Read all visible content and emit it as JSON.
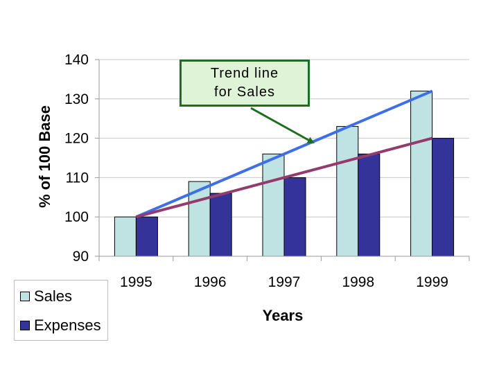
{
  "chart_data": {
    "type": "bar",
    "categories": [
      "1995",
      "1996",
      "1997",
      "1998",
      "1999"
    ],
    "series": [
      {
        "name": "Sales",
        "values": [
          100,
          109,
          116,
          123,
          132
        ],
        "color": "#bfe3e3"
      },
      {
        "name": "Expenses",
        "values": [
          100,
          106,
          110,
          116,
          120
        ],
        "color": "#33339a"
      }
    ],
    "trend_lines": [
      {
        "series": "Sales",
        "start": 100,
        "end": 132,
        "color": "#3f6fe8"
      },
      {
        "series": "Expenses",
        "start": 100,
        "end": 120,
        "color": "#943b6e"
      }
    ],
    "xlabel": "Years",
    "ylabel": "% of 100 Base",
    "ylim": [
      90,
      140
    ],
    "yticks": [
      "90",
      "100",
      "110",
      "120",
      "130",
      "140"
    ],
    "grid": true,
    "legend": "bottom-left",
    "annotation": {
      "line1": "Trend line",
      "line2": "for Sales",
      "target": "Sales trend line"
    }
  }
}
